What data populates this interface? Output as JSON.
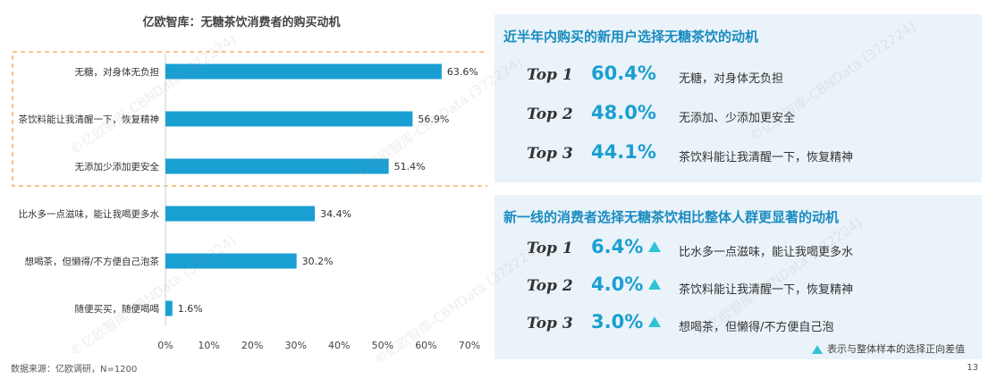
{
  "chart_data": {
    "type": "bar",
    "orientation": "horizontal",
    "title": "亿欧智库：无糖茶饮消费者的购买动机",
    "categories": [
      "无糖，对身体无负担",
      "茶饮料能让我清醒一下，恢复精神",
      "无添加少添加更安全",
      "比水多一点滋味，能让我喝更多水",
      "想喝茶，但懒得/不方便自己泡茶",
      "随便买买，随便喝喝"
    ],
    "values": [
      63.6,
      56.9,
      51.4,
      34.4,
      30.2,
      1.6
    ],
    "value_labels": [
      "63.6%",
      "56.9%",
      "51.4%",
      "34.4%",
      "30.2%",
      "1.6%"
    ],
    "xlim": [
      0,
      70
    ],
    "x_ticks": [
      "0%",
      "10%",
      "20%",
      "30%",
      "40%",
      "50%",
      "60%",
      "70%"
    ],
    "highlighted_top_n": 3,
    "bar_color": "#1a9fd3",
    "highlight_border_color": "#f0a050"
  },
  "panel1": {
    "title": "近半年内购买的新用户选择无糖茶饮的动机",
    "rows": [
      {
        "rank": "Top 1",
        "pct": "60.4%",
        "text": "无糖，对身体无负担"
      },
      {
        "rank": "Top 2",
        "pct": "48.0%",
        "text": "无添加、少添加更安全"
      },
      {
        "rank": "Top 3",
        "pct": "44.1%",
        "text": "茶饮料能让我清醒一下，恢复精神"
      }
    ]
  },
  "panel2": {
    "title": "新一线的消费者选择无糖茶饮相比整体人群更显著的动机",
    "rows": [
      {
        "rank": "Top 1",
        "pct": "6.4%",
        "text": "比水多一点滋味，能让我喝更多水"
      },
      {
        "rank": "Top 2",
        "pct": "4.0%",
        "text": "茶饮料能让我清醒一下，恢复精神"
      },
      {
        "rank": "Top 3",
        "pct": "3.0%",
        "text": "想喝茶，但懒得/不方便自己泡"
      }
    ],
    "legend": "表示与整体样本的选择正向差值"
  },
  "footer": {
    "source": "数据来源：亿欧调研，N=1200",
    "page": "13"
  },
  "watermark": {
    "text": "©亿欧智库-CBNData (372224)",
    "brand": "CBNData"
  },
  "colors": {
    "accent": "#1a9fd3",
    "panel_bg": "#eaf3f9",
    "title_blue": "#1a8cc0",
    "triangle": "#2ec4d4"
  }
}
